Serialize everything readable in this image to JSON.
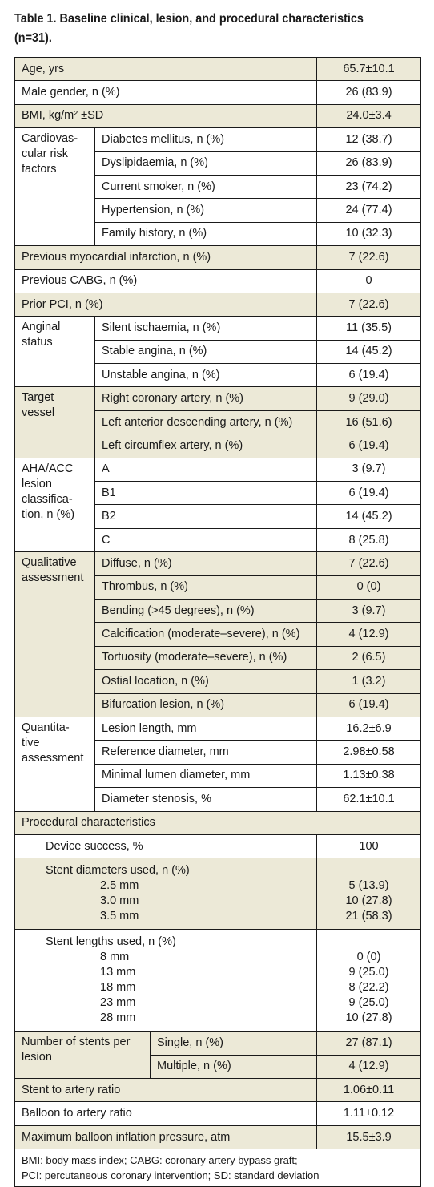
{
  "caption": "Table 1. Baseline clinical, lesion, and procedural characteristics (n=31).",
  "rows_simple_top": [
    {
      "label": "Age, yrs",
      "value": "65.7±10.1"
    },
    {
      "label": "Male gender, n (%)",
      "value": "26 (83.9)"
    },
    {
      "label": "BMI, kg/m² ±SD",
      "value": "24.0±3.4"
    }
  ],
  "risk": {
    "group": "Cardiovas-\ncular risk\nfactors",
    "rows": [
      {
        "label": "Diabetes mellitus, n (%)",
        "value": "12 (38.7)"
      },
      {
        "label": "Dyslipidaemia, n (%)",
        "value": "26 (83.9)"
      },
      {
        "label": "Current smoker, n (%)",
        "value": "23 (74.2)"
      },
      {
        "label": "Hypertension, n (%)",
        "value": "24 (77.4)"
      },
      {
        "label": "Family history, n (%)",
        "value": "10 (32.3)"
      }
    ]
  },
  "rows_simple_mid": [
    {
      "label": "Previous myocardial infarction, n (%)",
      "value": "7 (22.6)"
    },
    {
      "label": "Previous CABG, n (%)",
      "value": "0"
    },
    {
      "label": "Prior PCI, n (%)",
      "value": "7 (22.6)"
    }
  ],
  "anginal": {
    "group": "Anginal\nstatus",
    "rows": [
      {
        "label": "Silent ischaemia, n (%)",
        "value": "11 (35.5)"
      },
      {
        "label": "Stable angina, n (%)",
        "value": "14 (45.2)"
      },
      {
        "label": "Unstable angina, n (%)",
        "value": "6 (19.4)"
      }
    ]
  },
  "target": {
    "group": "Target\nvessel",
    "rows": [
      {
        "label": "Right coronary artery, n (%)",
        "value": "9 (29.0)"
      },
      {
        "label": "Left anterior descending artery, n (%)",
        "value": "16 (51.6)"
      },
      {
        "label": "Left circumflex artery, n (%)",
        "value": "6 (19.4)"
      }
    ]
  },
  "aha": {
    "group": "AHA/ACC\nlesion\nclassifica-\ntion, n (%)",
    "rows": [
      {
        "label": "A",
        "value": "3 (9.7)"
      },
      {
        "label": "B1",
        "value": "6 (19.4)"
      },
      {
        "label": "B2",
        "value": "14 (45.2)"
      },
      {
        "label": "C",
        "value": "8 (25.8)"
      }
    ]
  },
  "qualitative": {
    "group": "Qualitative\nassessment",
    "rows": [
      {
        "label": "Diffuse, n (%)",
        "value": "7 (22.6)"
      },
      {
        "label": "Thrombus, n (%)",
        "value": "0 (0)"
      },
      {
        "label": "Bending (>45 degrees), n (%)",
        "value": "3 (9.7)"
      },
      {
        "label": "Calcification (moderate–severe), n (%)",
        "value": "4 (12.9)"
      },
      {
        "label": "Tortuosity (moderate–severe), n (%)",
        "value": "2 (6.5)"
      },
      {
        "label": "Ostial location, n (%)",
        "value": "1 (3.2)"
      },
      {
        "label": "Bifurcation lesion, n (%)",
        "value": "6 (19.4)"
      }
    ]
  },
  "quantitative": {
    "group": "Quantita-\ntive\nassessment",
    "rows": [
      {
        "label": "Lesion length, mm",
        "value": "16.2±6.9"
      },
      {
        "label": "Reference diameter, mm",
        "value": "2.98±0.58"
      },
      {
        "label": "Minimal lumen diameter, mm",
        "value": "1.13±0.38"
      },
      {
        "label": "Diameter stenosis, %",
        "value": "62.1±10.1"
      }
    ]
  },
  "procedural": {
    "header": "Procedural characteristics",
    "device_label": "Device success, %",
    "device_value": "100",
    "diam_title": "Stent diameters used, n (%)",
    "diam_items": [
      {
        "label": "2.5 mm",
        "value": "5 (13.9)"
      },
      {
        "label": "3.0 mm",
        "value": "10 (27.8)"
      },
      {
        "label": "3.5 mm",
        "value": "21 (58.3)"
      }
    ],
    "len_title": "Stent lengths used, n (%)",
    "len_items": [
      {
        "label": "8 mm",
        "value": "0 (0)"
      },
      {
        "label": "13 mm",
        "value": "9 (25.0)"
      },
      {
        "label": "18 mm",
        "value": "8 (22.2)"
      },
      {
        "label": "23 mm",
        "value": "9 (25.0)"
      },
      {
        "label": "28 mm",
        "value": "10 (27.8)"
      }
    ]
  },
  "stents_per_lesion": {
    "group": "Number of stents per\nlesion",
    "rows": [
      {
        "label": "Single, n (%)",
        "value": "27 (87.1)"
      },
      {
        "label": "Multiple, n (%)",
        "value": "4 (12.9)"
      }
    ]
  },
  "rows_simple_bottom": [
    {
      "label": "Stent to artery ratio",
      "value": "1.06±0.11"
    },
    {
      "label": "Balloon to artery ratio",
      "value": "1.11±0.12"
    },
    {
      "label": "Maximum balloon inflation pressure, atm",
      "value": "15.5±3.9"
    }
  ],
  "footnote": "BMI: body mass index; CABG: coronary artery bypass graft;\nPCI: percutaneous coronary intervention; SD: standard deviation"
}
